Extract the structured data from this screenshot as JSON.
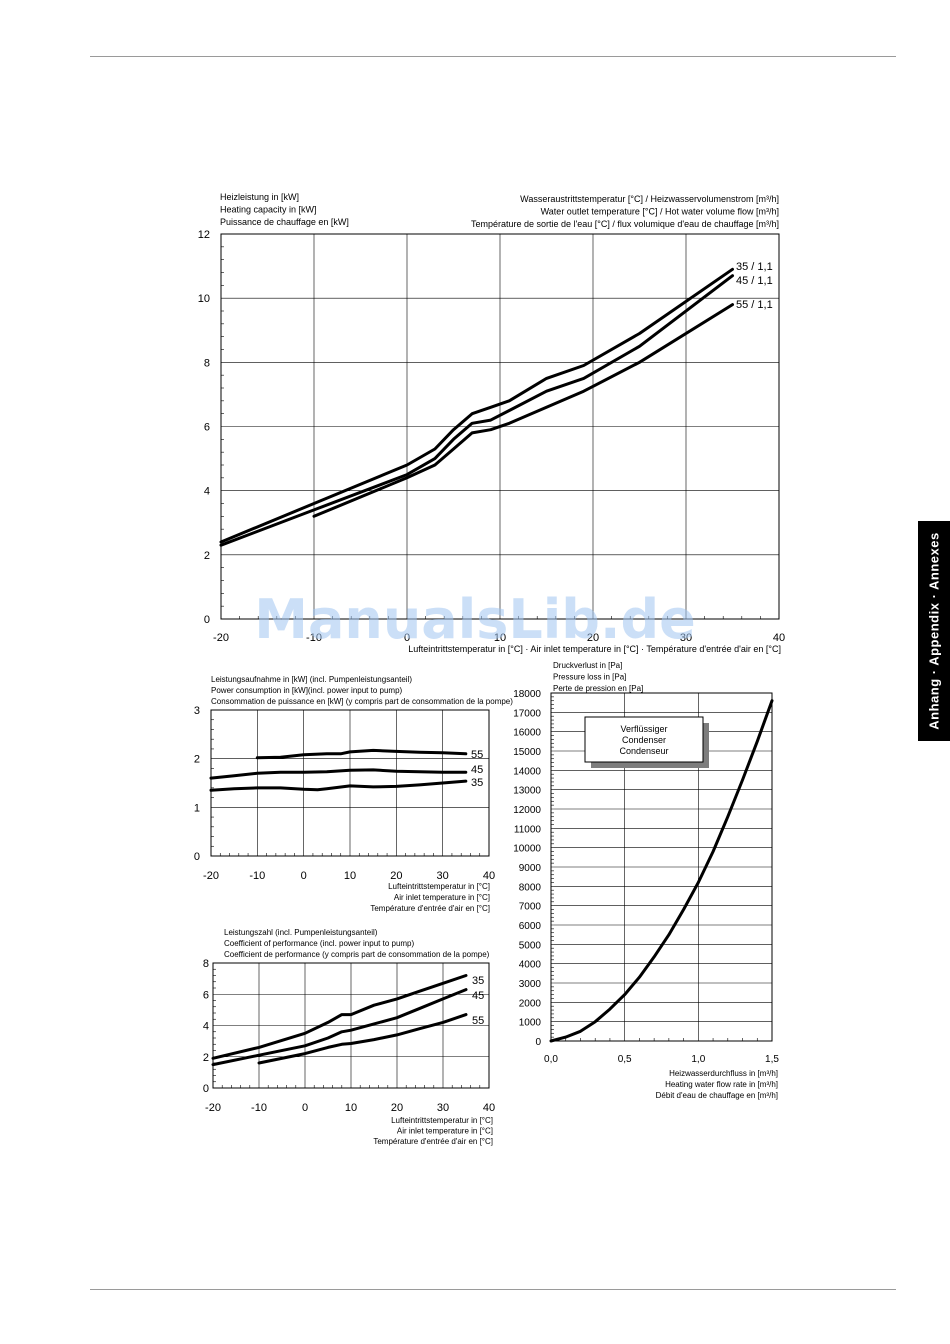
{
  "side_tab": "Anhang · Appendix · Annexes",
  "watermark": "ManualsLib.de",
  "chart_data": [
    {
      "type": "line",
      "ylabel_lines": [
        "Heizleistung in [kW]",
        "Heating capacity in [kW]",
        "Puissance de chauffage en [kW]"
      ],
      "legend_title_lines": [
        "Wasseraustrittstemperatur [°C] / Heizwasservolumenstrom [m³/h]",
        "Water outlet temperature [°C] / Hot water volume flow [m³/h]",
        "Température de sortie de l'eau [°C] / flux volumique d'eau de chauffage [m³/h]"
      ],
      "xlabel_lines": [
        "Lufteintrittstemperatur in [°C] · Air inlet temperature in [°C] · Température d'entrée d'air en [°C]"
      ],
      "xlim": [
        -20,
        40
      ],
      "ylim": [
        0,
        12
      ],
      "xticks": [
        -20,
        -10,
        0,
        10,
        20,
        30,
        40
      ],
      "yticks": [
        0,
        2,
        4,
        6,
        8,
        10,
        12
      ],
      "tick_labels_x": [
        "-20",
        "-10",
        "0",
        "10",
        "20",
        "30",
        "40"
      ],
      "tick_labels_y": [
        "0",
        "2",
        "4",
        "6",
        "8",
        "10",
        "12"
      ],
      "grid": true,
      "series": [
        {
          "name": "35 / 1,1",
          "x": [
            -20,
            -10,
            0,
            3,
            5,
            7,
            9,
            11,
            15,
            19,
            25,
            35
          ],
          "y": [
            2.4,
            3.6,
            4.8,
            5.3,
            5.9,
            6.4,
            6.6,
            6.8,
            7.5,
            7.9,
            8.9,
            10.9
          ]
        },
        {
          "name": "45 / 1,1",
          "x": [
            -20,
            -10,
            0,
            3,
            5,
            7,
            9,
            11,
            15,
            19,
            25,
            35
          ],
          "y": [
            2.3,
            3.4,
            4.5,
            5.0,
            5.6,
            6.1,
            6.2,
            6.5,
            7.1,
            7.5,
            8.5,
            10.7
          ]
        },
        {
          "name": "55 / 1,1",
          "x": [
            -10,
            0,
            3,
            5,
            7,
            9,
            11,
            15,
            19,
            25,
            35
          ],
          "y": [
            3.2,
            4.4,
            4.8,
            5.3,
            5.8,
            5.9,
            6.1,
            6.6,
            7.1,
            8.0,
            9.8
          ]
        }
      ]
    },
    {
      "type": "line",
      "ylabel_lines": [
        "Leistungsaufnahme in [kW] (incl. Pumpenleistungsanteil)",
        "Power consumption in [kW](incl. power input to pump)",
        "Consommation de puissance en  [kW] (y compris part de consommation de la pompe)"
      ],
      "xlabel_lines": [
        "Lufteintrittstemperatur in [°C]",
        "Air inlet temperature in [°C]",
        "Température d'entrée d'air en [°C]"
      ],
      "xlim": [
        -20,
        40
      ],
      "ylim": [
        0,
        3
      ],
      "xticks": [
        -20,
        -10,
        0,
        10,
        20,
        30,
        40
      ],
      "yticks": [
        0,
        1,
        2,
        3
      ],
      "tick_labels_x": [
        "-20",
        "-10",
        "0",
        "10",
        "20",
        "30",
        "40"
      ],
      "tick_labels_y": [
        "0",
        "1",
        "2",
        "3"
      ],
      "grid": true,
      "series": [
        {
          "name": "55",
          "x": [
            -10,
            -5,
            0,
            5,
            8,
            10,
            15,
            20,
            25,
            30,
            35
          ],
          "y": [
            2.02,
            2.03,
            2.08,
            2.1,
            2.1,
            2.14,
            2.17,
            2.15,
            2.13,
            2.12,
            2.1
          ]
        },
        {
          "name": "45",
          "x": [
            -20,
            -15,
            -10,
            -5,
            0,
            5,
            10,
            15,
            20,
            25,
            30,
            35
          ],
          "y": [
            1.6,
            1.65,
            1.7,
            1.72,
            1.72,
            1.73,
            1.76,
            1.77,
            1.74,
            1.73,
            1.72,
            1.72
          ]
        },
        {
          "name": "35",
          "x": [
            -20,
            -15,
            -10,
            -5,
            0,
            3,
            5,
            10,
            15,
            20,
            25,
            30,
            35
          ],
          "y": [
            1.35,
            1.38,
            1.4,
            1.4,
            1.37,
            1.36,
            1.38,
            1.44,
            1.42,
            1.43,
            1.46,
            1.5,
            1.54
          ]
        }
      ]
    },
    {
      "type": "line",
      "ylabel_lines": [
        "Leistungszahl (incl. Pumpenleistungsanteil)",
        "Coefficient of performance (incl. power input to pump)",
        "Coefficient de performance (y compris part de consommation de la pompe)"
      ],
      "xlabel_lines": [
        "Lufteintrittstemperatur in [°C]",
        "Air inlet temperature in [°C]",
        "Température d'entrée d'air en [°C]"
      ],
      "xlim": [
        -20,
        40
      ],
      "ylim": [
        0,
        8
      ],
      "xticks": [
        -20,
        -10,
        0,
        10,
        20,
        30,
        40
      ],
      "yticks": [
        0,
        2,
        4,
        6,
        8
      ],
      "tick_labels_x": [
        "-20",
        "-10",
        "0",
        "10",
        "20",
        "30",
        "40"
      ],
      "tick_labels_y": [
        "0",
        "2",
        "4",
        "6",
        "8"
      ],
      "grid": true,
      "series": [
        {
          "name": "35",
          "x": [
            -20,
            -10,
            0,
            5,
            8,
            10,
            15,
            20,
            25,
            30,
            35
          ],
          "y": [
            1.9,
            2.6,
            3.5,
            4.2,
            4.7,
            4.7,
            5.3,
            5.7,
            6.2,
            6.7,
            7.2
          ]
        },
        {
          "name": "45",
          "x": [
            -20,
            -10,
            0,
            5,
            8,
            10,
            15,
            20,
            25,
            30,
            35
          ],
          "y": [
            1.5,
            2.1,
            2.7,
            3.2,
            3.6,
            3.7,
            4.1,
            4.5,
            5.1,
            5.7,
            6.3
          ]
        },
        {
          "name": "55",
          "x": [
            -10,
            0,
            5,
            8,
            10,
            15,
            20,
            25,
            30,
            35
          ],
          "y": [
            1.6,
            2.2,
            2.6,
            2.8,
            2.85,
            3.1,
            3.4,
            3.8,
            4.2,
            4.7
          ]
        }
      ]
    },
    {
      "type": "line",
      "ylabel_lines": [
        "Druckverlust in [Pa]",
        "Pressure loss in [Pa]",
        "Perte de pression en [Pa]"
      ],
      "xlabel_lines": [
        "Heizwasserdurchfluss in [m³/h]",
        "Heating water flow rate in [m³/h]",
        "Débit d'eau de chauffage en [m³/h]"
      ],
      "legend_box_lines": [
        "Verflüssiger",
        "Condenser",
        "Condenseur"
      ],
      "xlim": [
        0,
        1.5
      ],
      "ylim": [
        0,
        18000
      ],
      "xticks": [
        0,
        0.5,
        1.0,
        1.5
      ],
      "yticks": [
        0,
        1000,
        2000,
        3000,
        4000,
        5000,
        6000,
        7000,
        8000,
        9000,
        10000,
        11000,
        12000,
        13000,
        14000,
        15000,
        16000,
        17000,
        18000
      ],
      "tick_labels_x": [
        "0,0",
        "0,5",
        "1,0",
        "1,5"
      ],
      "tick_labels_y": [
        "0",
        "1000",
        "2000",
        "3000",
        "4000",
        "5000",
        "6000",
        "7000",
        "8000",
        "9000",
        "10000",
        "11000",
        "12000",
        "13000",
        "14000",
        "15000",
        "16000",
        "17000",
        "18000"
      ],
      "grid": true,
      "series": [
        {
          "name": "",
          "x": [
            0,
            0.1,
            0.2,
            0.3,
            0.4,
            0.5,
            0.6,
            0.7,
            0.8,
            0.9,
            1.0,
            1.1,
            1.2,
            1.3,
            1.4,
            1.5
          ],
          "y": [
            0,
            200,
            500,
            1000,
            1650,
            2400,
            3300,
            4350,
            5500,
            6800,
            8200,
            9800,
            11600,
            13500,
            15500,
            17600
          ]
        }
      ]
    }
  ]
}
